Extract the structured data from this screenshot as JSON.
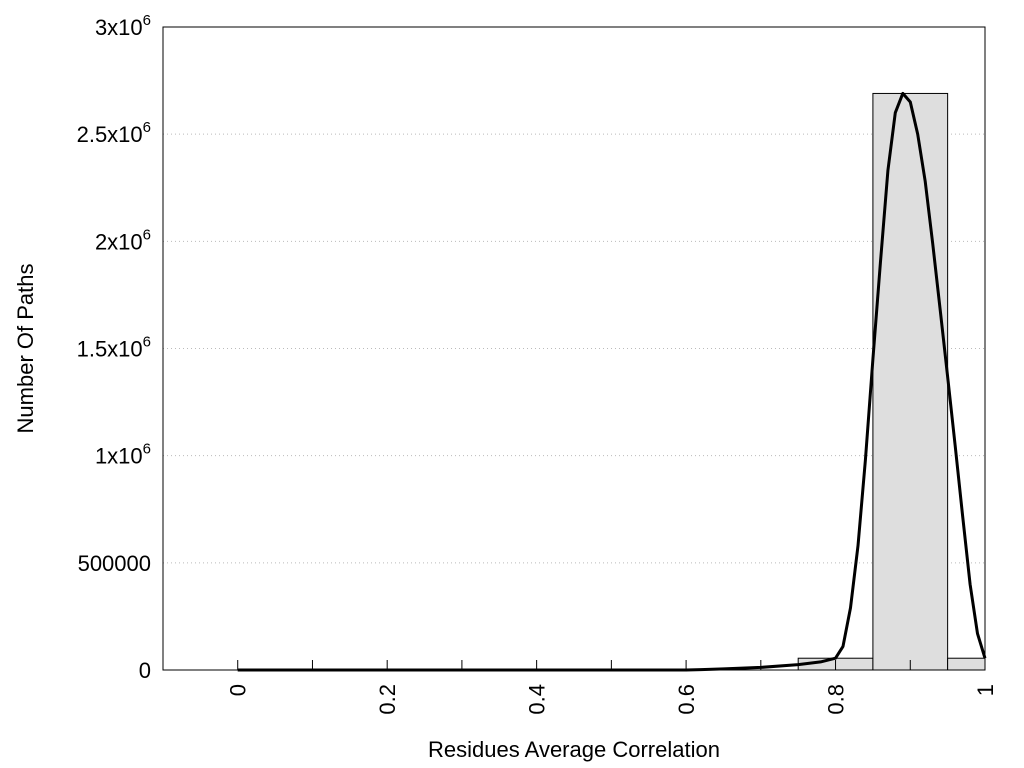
{
  "chart_data": {
    "type": "bar",
    "xlabel": "Residues Average Correlation",
    "ylabel": "Number Of Paths",
    "xlim": [
      -0.1,
      1.0
    ],
    "ylim": [
      0,
      3000000
    ],
    "grid": "horizontal dotted",
    "x_ticks": [
      {
        "value": 0,
        "label": "0"
      },
      {
        "value": 0.2,
        "label": "0.2"
      },
      {
        "value": 0.4,
        "label": "0.4"
      },
      {
        "value": 0.6,
        "label": "0.6"
      },
      {
        "value": 0.8,
        "label": "0.8"
      },
      {
        "value": 1.0,
        "label": "1"
      }
    ],
    "x_minor_ticks": [
      0.1,
      0.3,
      0.5,
      0.7,
      0.9
    ],
    "y_ticks": [
      {
        "value": 0,
        "label": "0",
        "exp": ""
      },
      {
        "value": 500000,
        "label": "500000",
        "exp": ""
      },
      {
        "value": 1000000,
        "label": "1x10",
        "exp": "6"
      },
      {
        "value": 1500000,
        "label": "1.5x10",
        "exp": "6"
      },
      {
        "value": 2000000,
        "label": "2x10",
        "exp": "6"
      },
      {
        "value": 2500000,
        "label": "2.5x10",
        "exp": "6"
      },
      {
        "value": 3000000,
        "label": "3x10",
        "exp": "6"
      }
    ],
    "bars": [
      {
        "x0": 0.75,
        "x1": 0.85,
        "value": 55000
      },
      {
        "x0": 0.85,
        "x1": 0.95,
        "value": 2690000
      },
      {
        "x0": 0.95,
        "x1": 1.0,
        "value": 55000
      }
    ],
    "fit_curve": {
      "x": [
        0,
        0.1,
        0.2,
        0.3,
        0.4,
        0.5,
        0.6,
        0.62,
        0.65,
        0.7,
        0.75,
        0.78,
        0.8,
        0.81,
        0.82,
        0.83,
        0.84,
        0.85,
        0.86,
        0.87,
        0.88,
        0.89,
        0.9,
        0.91,
        0.92,
        0.93,
        0.94,
        0.95,
        0.96,
        0.97,
        0.98,
        0.99,
        1.0
      ],
      "y": [
        0,
        0,
        0,
        0,
        0,
        0,
        0,
        2000,
        5000,
        12000,
        25000,
        38000,
        55000,
        110000,
        290000,
        580000,
        980000,
        1450000,
        1900000,
        2330000,
        2600000,
        2690000,
        2650000,
        2500000,
        2280000,
        1990000,
        1680000,
        1370000,
        1050000,
        720000,
        400000,
        170000,
        55000
      ]
    }
  }
}
